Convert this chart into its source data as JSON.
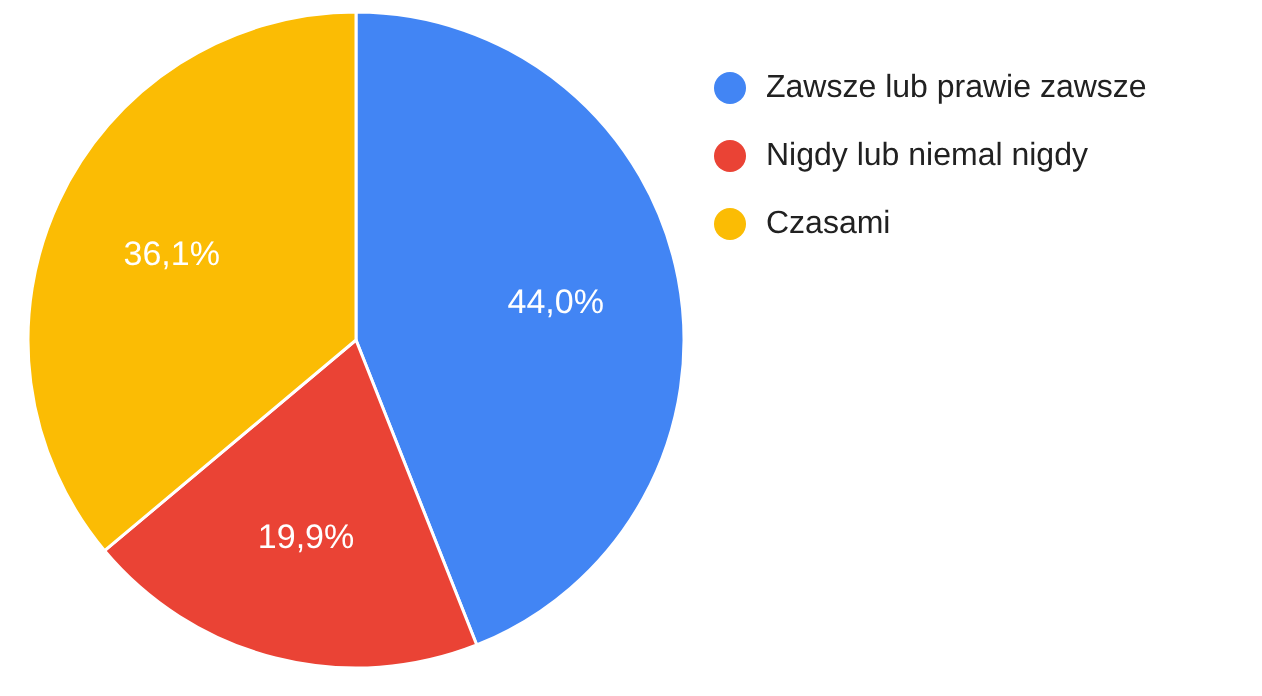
{
  "chart_data": {
    "type": "pie",
    "categories": [
      "Zawsze lub prawie zawsze",
      "Nigdy lub niemal nigdy",
      "Czasami"
    ],
    "values": [
      44.0,
      19.9,
      36.1
    ],
    "colors": [
      "#4285f4",
      "#ea4335",
      "#fbbc04"
    ],
    "value_labels": [
      "44,0%",
      "19,9%",
      "36,1%"
    ],
    "legend": "right"
  }
}
